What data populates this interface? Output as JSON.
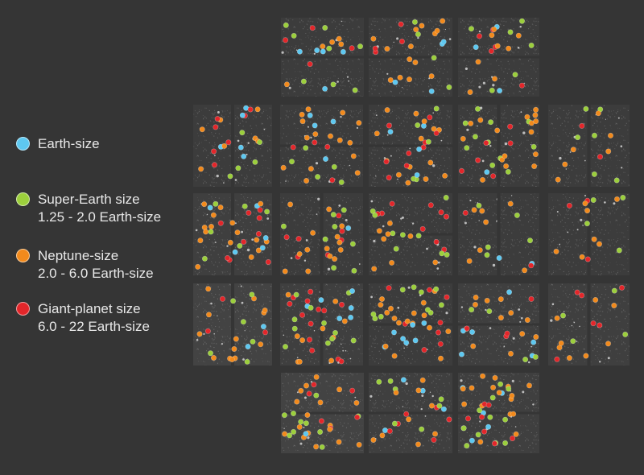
{
  "legend": {
    "items": [
      {
        "name": "earth-size",
        "color": "#5ec8f0",
        "lines": [
          "Earth-size"
        ]
      },
      {
        "name": "super-earth",
        "color": "#9ccf3c",
        "lines": [
          "Super-Earth size",
          "1.25 - 2.0 Earth-size"
        ]
      },
      {
        "name": "neptune-size",
        "color": "#f28a1c",
        "lines": [
          "Neptune-size",
          "2.0 - 6.0 Earth-size"
        ]
      },
      {
        "name": "giant-planet",
        "color": "#e3262a",
        "lines": [
          "Giant-planet size",
          "6.0 - 22 Earth-size"
        ]
      }
    ]
  }
}
